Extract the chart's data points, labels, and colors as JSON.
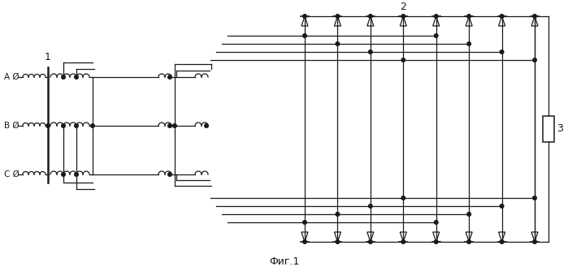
{
  "title": "Фиг.1",
  "label1": "1",
  "label2": "2",
  "label3": "3",
  "labelA": "A Ø",
  "labelB": "B Ø",
  "labelC": "C Ø",
  "bg_color": "#ffffff",
  "line_color": "#1a1a1a",
  "fig_width": 6.99,
  "fig_height": 3.34,
  "dpi": 100
}
